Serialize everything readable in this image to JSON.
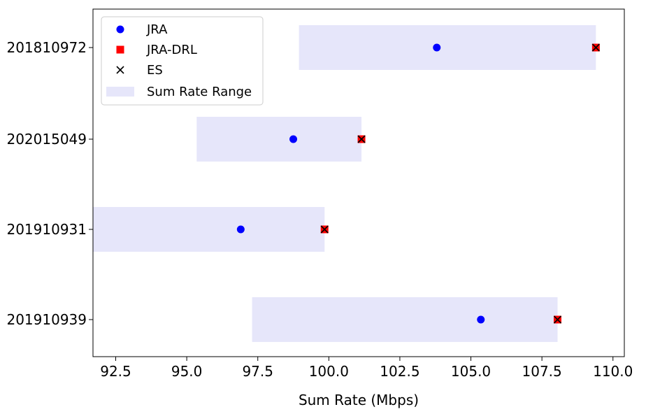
{
  "chart_data": {
    "type": "scatter",
    "orientation": "horizontal",
    "title": "",
    "xlabel": "Sum Rate (Mbps)",
    "ylabel": "",
    "xlim": [
      91.7,
      110.4
    ],
    "x_ticks": [
      92.5,
      95.0,
      97.5,
      100.0,
      102.5,
      105.0,
      107.5,
      110.0
    ],
    "x_tick_labels": [
      "92.5",
      "95.0",
      "97.5",
      "100.0",
      "102.5",
      "105.0",
      "107.5",
      "110.0"
    ],
    "categories": [
      "201810972",
      "202015049",
      "201910931",
      "201910939"
    ],
    "series": [
      {
        "name": "JRA",
        "marker": "circle",
        "color": "#0000ff",
        "values": [
          103.8,
          98.75,
          96.9,
          105.35
        ]
      },
      {
        "name": "JRA-DRL",
        "marker": "square",
        "color": "#ff0000",
        "values": [
          109.4,
          101.15,
          99.85,
          108.05
        ]
      },
      {
        "name": "ES",
        "marker": "x",
        "color": "#000000",
        "values": [
          109.4,
          101.15,
          99.85,
          108.05
        ]
      }
    ],
    "ranges": {
      "name": "Sum Rate Range",
      "color": "#e6e6fa",
      "intervals": [
        [
          98.95,
          109.4
        ],
        [
          95.35,
          101.15
        ],
        [
          91.7,
          99.85
        ],
        [
          97.3,
          108.05
        ]
      ]
    },
    "legend": {
      "position": "upper left",
      "entries": [
        "JRA",
        "JRA-DRL",
        "ES",
        "Sum Rate Range"
      ]
    },
    "grid": false
  }
}
